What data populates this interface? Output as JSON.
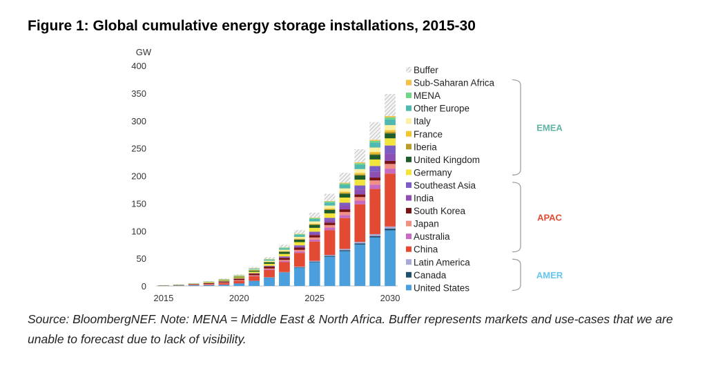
{
  "title": "Figure 1: Global cumulative energy storage installations, 2015-30",
  "source_note": "Source: BloombergNEF. Note: MENA = Middle East & North Africa. Buffer represents markets and use-cases that we are unable to forecast due to lack of visibility.",
  "chart_data": {
    "type": "bar",
    "stacked": true,
    "ylabel": "GW",
    "ylim": [
      0,
      400
    ],
    "yticks": [
      0,
      50,
      100,
      150,
      200,
      250,
      300,
      350,
      400
    ],
    "x": [
      2015,
      2016,
      2017,
      2018,
      2019,
      2020,
      2021,
      2022,
      2023,
      2024,
      2025,
      2026,
      2027,
      2028,
      2029,
      2030
    ],
    "xtick_labels": [
      "2015",
      "2020",
      "2025",
      "2030"
    ],
    "series": [
      {
        "name": "United States",
        "color": "#4a9fdc",
        "values": [
          0.5,
          0.8,
          1.2,
          1.5,
          2.2,
          4.5,
          9,
          15,
          24,
          33,
          43,
          53,
          63,
          75,
          88,
          101
        ]
      },
      {
        "name": "Canada",
        "color": "#1f4e6e",
        "values": [
          0,
          0,
          0,
          0,
          0,
          0.1,
          0.2,
          0.4,
          0.6,
          1,
          1.3,
          1.6,
          2,
          2.3,
          2.7,
          3
        ]
      },
      {
        "name": "Latin America",
        "color": "#a9a9d6",
        "values": [
          0,
          0,
          0,
          0,
          0.1,
          0.2,
          0.3,
          0.5,
          0.7,
          1,
          1.4,
          1.8,
          2.3,
          2.8,
          3.4,
          4
        ]
      },
      {
        "name": "China",
        "color": "#e34a33",
        "values": [
          0.2,
          0.4,
          0.8,
          1.6,
          2.8,
          4.5,
          8,
          13,
          18,
          25,
          35,
          45,
          56,
          68,
          82,
          96
        ]
      },
      {
        "name": "Australia",
        "color": "#c76bc1",
        "values": [
          0,
          0,
          0.1,
          0.2,
          0.3,
          0.5,
          0.8,
          1.2,
          1.8,
          2.5,
          3.5,
          4.5,
          5.5,
          6.8,
          8,
          9
        ]
      },
      {
        "name": "Japan",
        "color": "#f08f83",
        "values": [
          0.1,
          0.2,
          0.3,
          0.5,
          0.7,
          0.9,
          1.2,
          1.6,
          2.2,
          3,
          3.8,
          4.6,
          5.5,
          6.5,
          7.5,
          8.5
        ]
      },
      {
        "name": "South Korea",
        "color": "#7a1313",
        "values": [
          0.1,
          0.3,
          0.7,
          1.5,
          2.1,
          2.6,
          3,
          3.4,
          3.8,
          4.1,
          4.4,
          4.6,
          4.8,
          5,
          5.2,
          5.5
        ]
      },
      {
        "name": "India",
        "color": "#8e4fb5",
        "values": [
          0,
          0,
          0,
          0,
          0.1,
          0.2,
          0.4,
          0.8,
          1.4,
          2.4,
          3.5,
          5,
          7,
          9,
          11,
          13
        ]
      },
      {
        "name": "Southeast Asia",
        "color": "#7b5dc4",
        "values": [
          0,
          0,
          0,
          0,
          0.1,
          0.2,
          0.4,
          0.8,
          1.2,
          1.8,
          2.6,
          3.5,
          5,
          7,
          10,
          15
        ]
      },
      {
        "name": "Germany",
        "color": "#f2e33d",
        "values": [
          0.1,
          0.2,
          0.5,
          0.8,
          1.2,
          1.8,
          2.6,
          3.5,
          4.5,
          5.8,
          7,
          8.2,
          9.4,
          10.6,
          11.8,
          13
        ]
      },
      {
        "name": "United Kingdom",
        "color": "#1e5c2a",
        "values": [
          0.1,
          0.3,
          0.5,
          0.8,
          1.1,
          1.5,
          2.2,
          3,
          3.8,
          4.6,
          5.4,
          6.2,
          7,
          7.8,
          8.5,
          9
        ]
      },
      {
        "name": "Iberia",
        "color": "#b89c29",
        "values": [
          0,
          0,
          0,
          0,
          0,
          0.1,
          0.2,
          0.3,
          0.5,
          0.7,
          1,
          1.3,
          1.6,
          2,
          2.4,
          2.8
        ]
      },
      {
        "name": "France",
        "color": "#f4c430",
        "values": [
          0,
          0,
          0.1,
          0.1,
          0.2,
          0.3,
          0.4,
          0.6,
          0.8,
          1,
          1.3,
          1.6,
          2,
          2.4,
          2.8,
          3.2
        ]
      },
      {
        "name": "Italy",
        "color": "#faf1a4",
        "values": [
          0.1,
          0.2,
          0.3,
          0.4,
          0.6,
          0.8,
          1.2,
          1.8,
          2.5,
          3.2,
          4,
          5,
          6,
          7,
          8,
          9
        ]
      },
      {
        "name": "Other Europe",
        "color": "#4fb8b0",
        "values": [
          0.1,
          0.2,
          0.3,
          0.5,
          0.7,
          1,
          1.4,
          2,
          2.8,
          3.6,
          4.5,
          5.5,
          6.6,
          7.8,
          9,
          10.5
        ]
      },
      {
        "name": "MENA",
        "color": "#6fd48a",
        "values": [
          0,
          0,
          0,
          0.1,
          0.2,
          0.3,
          0.5,
          0.7,
          1,
          1.3,
          1.6,
          2,
          2.4,
          2.8,
          3.2,
          3.7
        ]
      },
      {
        "name": "Sub-Saharan Africa",
        "color": "#f2c14e",
        "values": [
          0,
          0,
          0,
          0,
          0.1,
          0.1,
          0.2,
          0.3,
          0.4,
          0.6,
          0.8,
          1,
          1.3,
          1.6,
          2,
          2.4
        ]
      },
      {
        "name": "Buffer",
        "color": "#cccccc",
        "pattern": "hatch",
        "values": [
          0.5,
          0.6,
          0.7,
          0.9,
          1.1,
          1.5,
          2.4,
          3.5,
          5,
          7,
          9,
          13,
          18,
          24,
          32,
          40
        ]
      }
    ],
    "groups": [
      {
        "label": "EMEA",
        "color": "#5fb3a3",
        "series": [
          "Sub-Saharan Africa",
          "MENA",
          "Other Europe",
          "Italy",
          "France",
          "Iberia",
          "United Kingdom",
          "Germany"
        ]
      },
      {
        "label": "APAC",
        "color": "#e34a33",
        "series": [
          "Southeast Asia",
          "India",
          "South Korea",
          "Japan",
          "Australia",
          "China"
        ]
      },
      {
        "label": "AMER",
        "color": "#66c6ee",
        "series": [
          "Latin America",
          "Canada",
          "United States"
        ]
      }
    ],
    "legend_order": [
      "Buffer",
      "Sub-Saharan Africa",
      "MENA",
      "Other Europe",
      "Italy",
      "France",
      "Iberia",
      "United Kingdom",
      "Germany",
      "Southeast Asia",
      "India",
      "South Korea",
      "Japan",
      "Australia",
      "China",
      "Latin America",
      "Canada",
      "United States"
    ],
    "legend_position": "right",
    "grid": false
  }
}
